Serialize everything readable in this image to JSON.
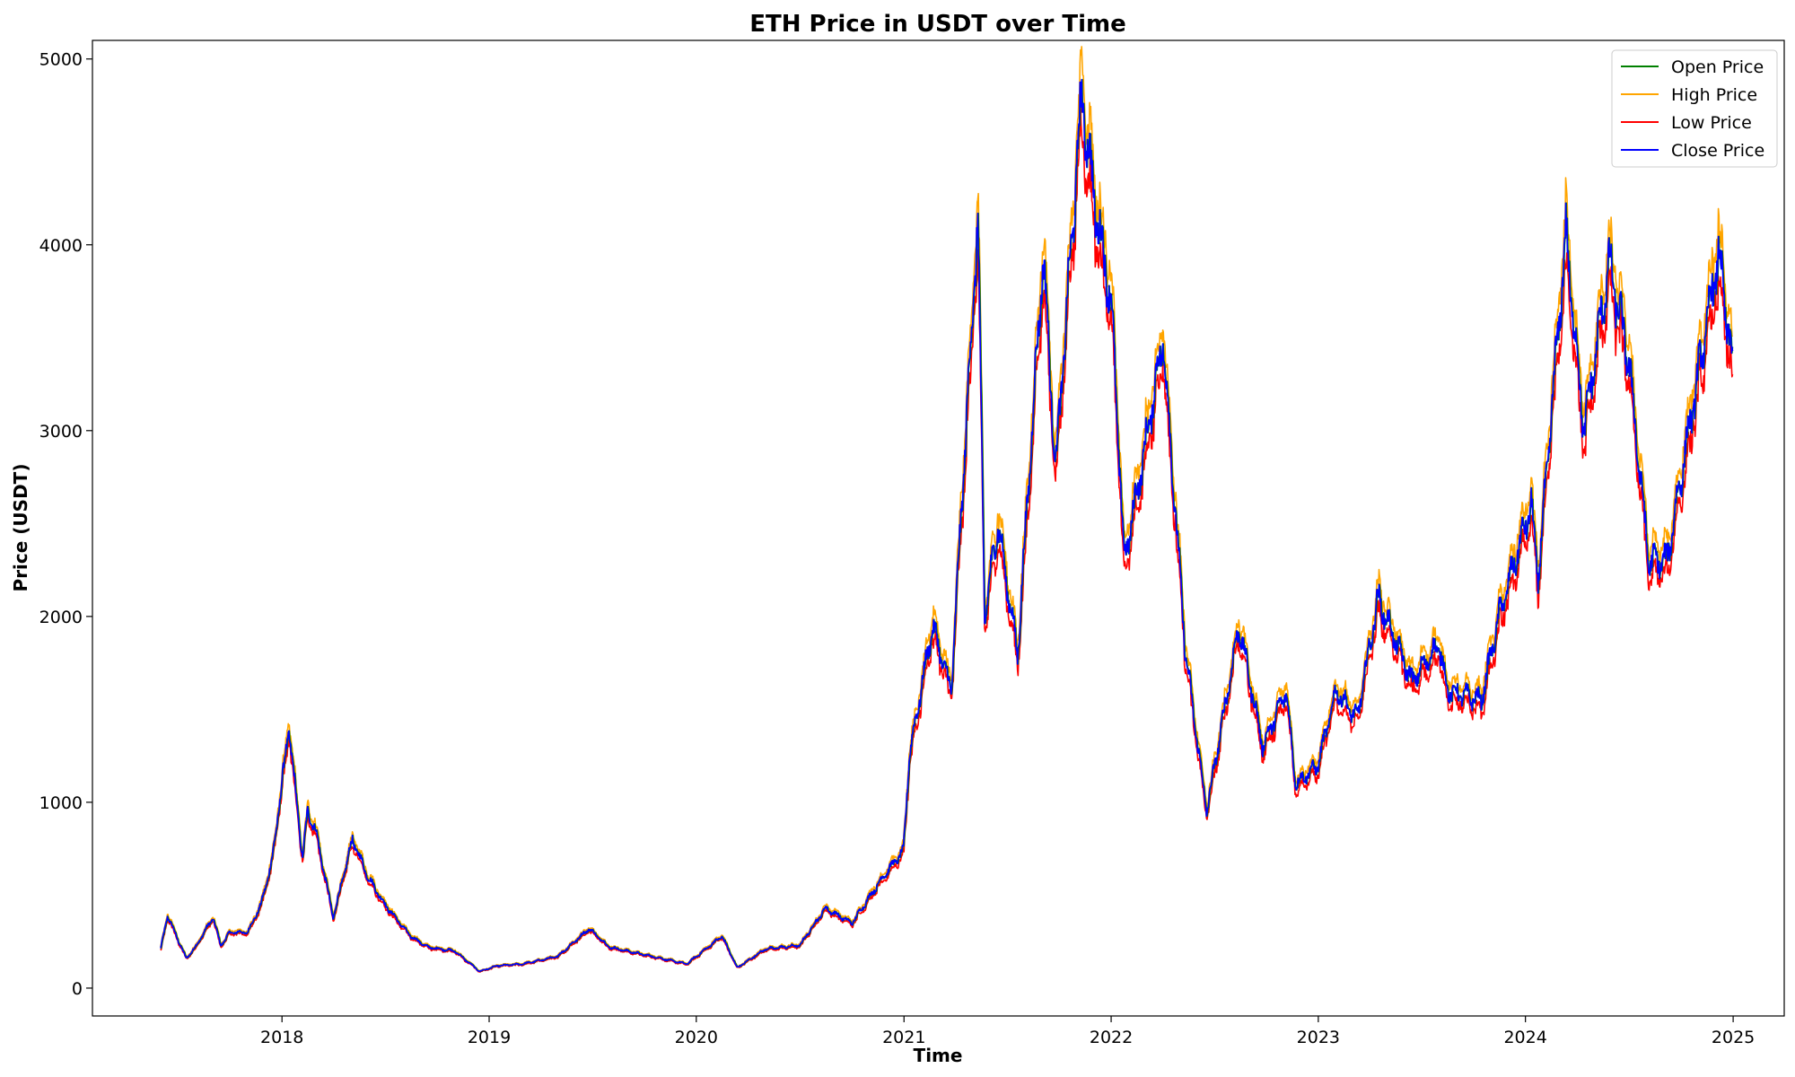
{
  "chart_data": {
    "type": "line",
    "title": "ETH Price in USDT over Time",
    "xlabel": "Time",
    "ylabel": "Price (USDT)",
    "xlim": [
      "2017-02-01",
      "2025-04-01"
    ],
    "ylim": [
      -150,
      5100
    ],
    "x_ticks": [
      "2018",
      "2019",
      "2020",
      "2021",
      "2022",
      "2023",
      "2024",
      "2025"
    ],
    "y_ticks": [
      0,
      1000,
      2000,
      3000,
      4000,
      5000
    ],
    "grid": false,
    "legend_position": "top-right",
    "series": [
      {
        "name": "Open Price",
        "color": "#008000"
      },
      {
        "name": "High Price",
        "color": "#ffa500"
      },
      {
        "name": "Low Price",
        "color": "#ff0000"
      },
      {
        "name": "Close Price",
        "color": "#0000ff"
      }
    ],
    "close_approx": [
      [
        "2017-06-01",
        210
      ],
      [
        "2017-06-13",
        390
      ],
      [
        "2017-07-16",
        160
      ],
      [
        "2017-08-01",
        220
      ],
      [
        "2017-09-01",
        380
      ],
      [
        "2017-09-15",
        230
      ],
      [
        "2017-10-01",
        300
      ],
      [
        "2017-11-01",
        300
      ],
      [
        "2017-11-25",
        450
      ],
      [
        "2017-12-15",
        700
      ],
      [
        "2018-01-13",
        1400
      ],
      [
        "2018-02-06",
        700
      ],
      [
        "2018-02-15",
        950
      ],
      [
        "2018-03-01",
        850
      ],
      [
        "2018-04-01",
        380
      ],
      [
        "2018-05-05",
        800
      ],
      [
        "2018-06-01",
        600
      ],
      [
        "2018-07-01",
        450
      ],
      [
        "2018-08-15",
        280
      ],
      [
        "2018-09-15",
        220
      ],
      [
        "2018-11-01",
        200
      ],
      [
        "2018-12-15",
        90
      ],
      [
        "2019-01-15",
        120
      ],
      [
        "2019-03-01",
        130
      ],
      [
        "2019-05-01",
        170
      ],
      [
        "2019-06-26",
        320
      ],
      [
        "2019-08-01",
        220
      ],
      [
        "2019-10-01",
        180
      ],
      [
        "2019-12-15",
        130
      ],
      [
        "2020-02-15",
        280
      ],
      [
        "2020-03-13",
        110
      ],
      [
        "2020-05-01",
        210
      ],
      [
        "2020-07-01",
        230
      ],
      [
        "2020-08-15",
        430
      ],
      [
        "2020-10-01",
        350
      ],
      [
        "2020-11-25",
        600
      ],
      [
        "2020-12-31",
        740
      ],
      [
        "2021-01-10",
        1250
      ],
      [
        "2021-02-20",
        1950
      ],
      [
        "2021-03-25",
        1600
      ],
      [
        "2021-05-11",
        4150
      ],
      [
        "2021-05-23",
        2000
      ],
      [
        "2021-06-15",
        2500
      ],
      [
        "2021-07-20",
        1800
      ],
      [
        "2021-09-03",
        3950
      ],
      [
        "2021-09-25",
        2800
      ],
      [
        "2021-11-10",
        4800
      ],
      [
        "2021-12-04",
        4200
      ],
      [
        "2022-01-01",
        3700
      ],
      [
        "2022-01-24",
        2300
      ],
      [
        "2022-03-01",
        2900
      ],
      [
        "2022-04-02",
        3500
      ],
      [
        "2022-05-12",
        1800
      ],
      [
        "2022-06-18",
        950
      ],
      [
        "2022-08-14",
        1950
      ],
      [
        "2022-09-25",
        1300
      ],
      [
        "2022-11-05",
        1600
      ],
      [
        "2022-11-22",
        1100
      ],
      [
        "2022-12-31",
        1200
      ],
      [
        "2023-02-01",
        1600
      ],
      [
        "2023-03-10",
        1450
      ],
      [
        "2023-04-16",
        2100
      ],
      [
        "2023-06-15",
        1650
      ],
      [
        "2023-08-01",
        1850
      ],
      [
        "2023-08-17",
        1600
      ],
      [
        "2023-10-15",
        1550
      ],
      [
        "2023-11-15",
        2000
      ],
      [
        "2024-01-11",
        2600
      ],
      [
        "2024-01-23",
        2200
      ],
      [
        "2024-03-12",
        4050
      ],
      [
        "2024-04-13",
        3000
      ],
      [
        "2024-05-27",
        3900
      ],
      [
        "2024-06-30",
        3400
      ],
      [
        "2024-08-05",
        2300
      ],
      [
        "2024-09-06",
        2300
      ],
      [
        "2024-12-06",
        3950
      ],
      [
        "2024-12-31",
        3350
      ]
    ]
  }
}
